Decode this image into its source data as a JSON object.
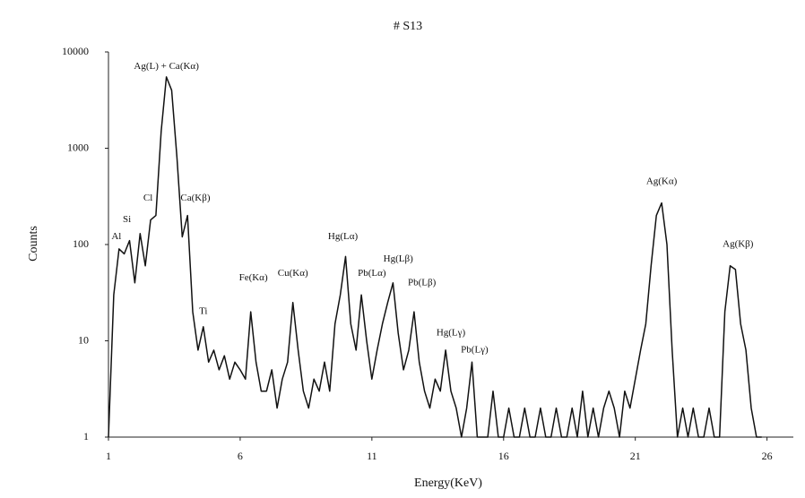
{
  "chart_data": {
    "type": "line",
    "title": "# S13",
    "x_label": "Energy(KeV)",
    "y_label": "Counts",
    "log_y": true,
    "color": "#111111",
    "xlim": [
      1,
      27
    ],
    "xticks": [
      1,
      6,
      11,
      16,
      21,
      26
    ],
    "ylim": [
      1,
      10000
    ],
    "yticks": [
      1,
      10,
      100,
      1000,
      10000
    ],
    "x": [
      1.0,
      1.2,
      1.4,
      1.6,
      1.8,
      2.0,
      2.2,
      2.4,
      2.6,
      2.8,
      3.0,
      3.2,
      3.4,
      3.6,
      3.8,
      4.0,
      4.2,
      4.4,
      4.6,
      4.8,
      5.0,
      5.2,
      5.4,
      5.6,
      5.8,
      6.0,
      6.2,
      6.4,
      6.6,
      6.8,
      7.0,
      7.2,
      7.4,
      7.6,
      7.8,
      8.0,
      8.2,
      8.4,
      8.6,
      8.8,
      9.0,
      9.2,
      9.4,
      9.6,
      9.8,
      10.0,
      10.2,
      10.4,
      10.6,
      10.8,
      11.0,
      11.2,
      11.4,
      11.6,
      11.8,
      12.0,
      12.2,
      12.4,
      12.6,
      12.8,
      13.0,
      13.2,
      13.4,
      13.6,
      13.8,
      14.0,
      14.2,
      14.4,
      14.6,
      14.8,
      15.0,
      15.2,
      15.4,
      15.6,
      15.8,
      16.0,
      16.2,
      16.4,
      16.6,
      16.8,
      17.0,
      17.2,
      17.4,
      17.6,
      17.8,
      18.0,
      18.2,
      18.4,
      18.6,
      18.8,
      19.0,
      19.2,
      19.4,
      19.6,
      19.8,
      20.0,
      20.2,
      20.4,
      20.6,
      20.8,
      21.0,
      21.2,
      21.4,
      21.6,
      21.8,
      22.0,
      22.2,
      22.4,
      22.6,
      22.8,
      23.0,
      23.2,
      23.4,
      23.6,
      23.8,
      24.0,
      24.2,
      24.4,
      24.6,
      24.8,
      25.0,
      25.2,
      25.4,
      25.6,
      25.8
    ],
    "values": [
      1,
      30,
      90,
      80,
      110,
      40,
      130,
      60,
      180,
      200,
      1500,
      5500,
      4000,
      800,
      120,
      200,
      20,
      8,
      14,
      6,
      8,
      5,
      7,
      4,
      6,
      5,
      4,
      20,
      6,
      3,
      3,
      5,
      2,
      4,
      6,
      25,
      8,
      3,
      2,
      4,
      3,
      6,
      3,
      15,
      30,
      75,
      15,
      8,
      30,
      10,
      4,
      8,
      15,
      25,
      40,
      12,
      5,
      8,
      20,
      6,
      3,
      2,
      4,
      3,
      8,
      3,
      2,
      1,
      2,
      6,
      1,
      1,
      1,
      3,
      1,
      1,
      2,
      1,
      1,
      2,
      1,
      1,
      2,
      1,
      1,
      2,
      1,
      1,
      2,
      1,
      3,
      1,
      2,
      1,
      2,
      3,
      2,
      1,
      3,
      2,
      4,
      8,
      15,
      60,
      200,
      270,
      100,
      8,
      1,
      2,
      1,
      2,
      1,
      1,
      2,
      1,
      1,
      20,
      60,
      55,
      15,
      8,
      2,
      1,
      1
    ],
    "annotations": [
      {
        "text": "Ag(L) + Ca(Kα)",
        "x": 3.2,
        "y": 7000
      },
      {
        "text": "Al",
        "x": 1.3,
        "y": 120
      },
      {
        "text": "Si",
        "x": 1.7,
        "y": 180
      },
      {
        "text": "Cl",
        "x": 2.5,
        "y": 300
      },
      {
        "text": "Ca(Kβ)",
        "x": 4.3,
        "y": 300
      },
      {
        "text": "Ti",
        "x": 4.6,
        "y": 20
      },
      {
        "text": "Fe(Kα)",
        "x": 6.5,
        "y": 45
      },
      {
        "text": "Cu(Kα)",
        "x": 8.0,
        "y": 50
      },
      {
        "text": "Hg(Lα)",
        "x": 9.9,
        "y": 120
      },
      {
        "text": "Pb(Lα)",
        "x": 11.0,
        "y": 50
      },
      {
        "text": "Hg(Lβ)",
        "x": 12.0,
        "y": 70
      },
      {
        "text": "Pb(Lβ)",
        "x": 12.9,
        "y": 40
      },
      {
        "text": "Hg(Lγ)",
        "x": 14.0,
        "y": 12
      },
      {
        "text": "Pb(Lγ)",
        "x": 14.9,
        "y": 8
      },
      {
        "text": "Ag(Kα)",
        "x": 22.0,
        "y": 450
      },
      {
        "text": "Ag(Kβ)",
        "x": 24.9,
        "y": 100
      }
    ]
  }
}
